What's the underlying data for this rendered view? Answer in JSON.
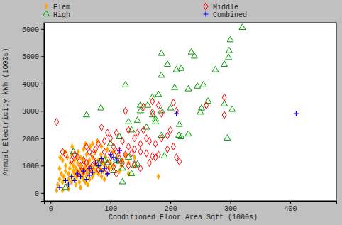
{
  "chart_data": {
    "type": "scatter",
    "x_label": "Conditioned Floor Area  Sqft (1000s)",
    "y_label": "Annual Electricity kWh (1000s)",
    "xlim": [
      -11,
      477
    ],
    "xticks": [
      0,
      100,
      200,
      300,
      400
    ],
    "ylim": [
      -290,
      6230
    ],
    "yticks": [
      0,
      1000,
      2000,
      3000,
      4000,
      5000,
      6000
    ],
    "grid": false,
    "legend": "top",
    "series": [
      {
        "name": "Elem",
        "color": "#ffa500",
        "marker": "diamond",
        "x": [
          10,
          12,
          15,
          15,
          18,
          20,
          20,
          22,
          25,
          25,
          28,
          28,
          30,
          30,
          32,
          33,
          35,
          35,
          35,
          38,
          38,
          40,
          40,
          40,
          42,
          42,
          44,
          45,
          45,
          46,
          48,
          48,
          50,
          50,
          50,
          52,
          52,
          54,
          55,
          55,
          55,
          56,
          58,
          58,
          60,
          60,
          60,
          62,
          62,
          64,
          65,
          65,
          66,
          68,
          68,
          70,
          70,
          72,
          72,
          74,
          75,
          76,
          78,
          78,
          80,
          80,
          82,
          84,
          85,
          86,
          88,
          90,
          92,
          94,
          95,
          98,
          100,
          105,
          110,
          115,
          120,
          125,
          130,
          130,
          180,
          16,
          24,
          36,
          44,
          58,
          70,
          85,
          105,
          140,
          118,
          62,
          50,
          20,
          30,
          90
        ],
        "values": [
          100,
          300,
          500,
          900,
          700,
          1200,
          400,
          600,
          800,
          1000,
          300,
          1300,
          500,
          700,
          900,
          1100,
          400,
          600,
          1400,
          800,
          1000,
          500,
          700,
          1200,
          300,
          900,
          600,
          1100,
          800,
          1500,
          400,
          700,
          900,
          1000,
          1300,
          600,
          800,
          1200,
          500,
          700,
          1600,
          900,
          1000,
          400,
          800,
          600,
          1400,
          1100,
          700,
          900,
          500,
          1200,
          1700,
          800,
          1000,
          600,
          1300,
          900,
          700,
          1100,
          1500,
          800,
          1000,
          1900,
          700,
          1200,
          900,
          1400,
          600,
          1100,
          800,
          1000,
          1300,
          700,
          1600,
          900,
          1100,
          1000,
          1300,
          800,
          1200,
          1400,
          1100,
          700,
          600,
          1300,
          1500,
          1700,
          1300,
          1800,
          1800,
          1700,
          1500,
          1300,
          1000,
          300,
          200,
          100,
          150,
          500
        ]
      },
      {
        "name": "High",
        "color": "#009900",
        "marker": "triangle-open",
        "x": [
          320,
          300,
          298,
          297,
          185,
          235,
          240,
          195,
          210,
          218,
          275,
          290,
          185,
          245,
          230,
          207,
          125,
          255,
          180,
          170,
          150,
          162,
          150,
          185,
          200,
          252,
          263,
          290,
          303,
          84,
          170,
          175,
          145,
          130,
          175,
          160,
          215,
          250,
          60,
          214,
          218,
          230,
          295,
          185,
          135,
          115,
          100,
          38,
          110,
          95,
          90,
          115,
          80,
          120,
          130,
          190,
          105,
          135,
          140,
          25,
          145,
          120
        ],
        "values": [
          6050,
          5600,
          5200,
          4950,
          5100,
          5150,
          5000,
          4700,
          4500,
          4550,
          4500,
          4700,
          4300,
          3900,
          3800,
          3850,
          3950,
          3950,
          3600,
          3500,
          3200,
          3200,
          3000,
          3000,
          3100,
          3100,
          3350,
          3250,
          3050,
          3100,
          2850,
          2700,
          2650,
          2600,
          2600,
          2400,
          2500,
          2950,
          2850,
          2100,
          2050,
          2150,
          2000,
          2100,
          2300,
          2050,
          1800,
          1500,
          1200,
          1100,
          1200,
          1150,
          1050,
          900,
          1300,
          1350,
          800,
          700,
          1000,
          200,
          1050,
          400
        ]
      },
      {
        "name": "Middle",
        "color": "#ff0000",
        "marker": "diamond-open",
        "x": [
          10,
          125,
          155,
          170,
          170,
          180,
          205,
          210,
          185,
          260,
          290,
          290,
          85,
          95,
          110,
          130,
          145,
          155,
          160,
          140,
          120,
          100,
          90,
          80,
          105,
          130,
          150,
          165,
          175,
          60,
          65,
          70,
          75,
          90,
          100,
          110,
          115,
          125,
          135,
          150,
          160,
          170,
          180,
          195,
          205,
          40,
          45,
          35,
          20,
          25,
          55,
          60,
          75,
          85,
          95,
          105,
          120,
          130,
          140,
          150,
          165,
          210,
          215,
          50,
          65,
          80,
          95,
          110,
          70,
          45,
          55,
          100,
          115,
          140,
          175,
          185,
          200,
          195
        ],
        "values": [
          2600,
          3000,
          3150,
          3350,
          2950,
          3200,
          3300,
          3000,
          2900,
          3200,
          3500,
          2850,
          2400,
          2200,
          2200,
          2300,
          2200,
          2300,
          2000,
          2000,
          1900,
          2000,
          1900,
          1800,
          1700,
          1700,
          1800,
          1900,
          1800,
          1700,
          1500,
          1400,
          1600,
          1500,
          1450,
          1500,
          1550,
          1400,
          1450,
          1500,
          1450,
          1350,
          1400,
          1600,
          1700,
          1400,
          1300,
          1200,
          1500,
          1400,
          1200,
          1100,
          1150,
          1200,
          1050,
          950,
          1100,
          1000,
          1050,
          900,
          1100,
          1300,
          1150,
          1000,
          900,
          850,
          800,
          700,
          1000,
          700,
          800,
          1300,
          1250,
          1600,
          1300,
          2000,
          2300,
          2100
        ]
      },
      {
        "name": "Combined",
        "color": "#0000ff",
        "marker": "plus",
        "x": [
          210,
          410,
          15,
          30,
          40,
          35,
          45,
          50,
          55,
          65,
          70,
          75,
          80,
          85,
          90,
          100,
          105,
          115,
          65,
          95,
          60,
          25,
          85,
          110
        ],
        "values": [
          2900,
          2900,
          200,
          300,
          450,
          600,
          700,
          600,
          800,
          900,
          750,
          1100,
          1000,
          1250,
          900,
          1400,
          1300,
          1550,
          650,
          700,
          500,
          450,
          800,
          1200
        ]
      }
    ]
  }
}
